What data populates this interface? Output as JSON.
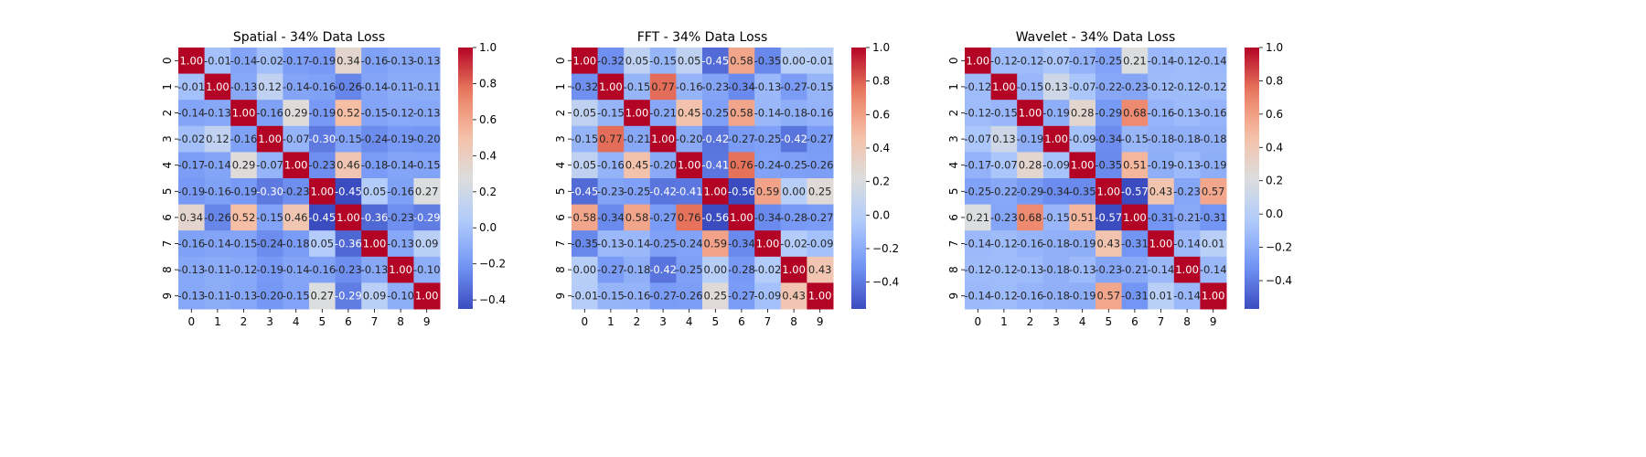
{
  "colormap": {
    "name": "coolwarm",
    "stops": [
      "#3b4cc0",
      "#7396f5",
      "#b0cbfc",
      "#dcdddd",
      "#f6bfa6",
      "#ea7b60",
      "#b40426"
    ]
  },
  "chart_data": [
    {
      "type": "heatmap",
      "title": "Spatial - 34% Data Loss",
      "x_ticks": [
        "0",
        "1",
        "2",
        "3",
        "4",
        "5",
        "6",
        "7",
        "8",
        "9"
      ],
      "y_ticks": [
        "0",
        "1",
        "2",
        "3",
        "4",
        "5",
        "6",
        "7",
        "8",
        "9"
      ],
      "values": [
        [
          1.0,
          -0.01,
          -0.14,
          -0.02,
          -0.17,
          -0.19,
          0.34,
          -0.16,
          -0.13,
          -0.13
        ],
        [
          -0.01,
          1.0,
          -0.13,
          0.12,
          -0.14,
          -0.16,
          -0.26,
          -0.14,
          -0.11,
          -0.11
        ],
        [
          -0.14,
          -0.13,
          1.0,
          -0.16,
          0.29,
          -0.19,
          0.52,
          -0.15,
          -0.12,
          -0.13
        ],
        [
          -0.02,
          0.12,
          -0.16,
          1.0,
          -0.07,
          -0.3,
          -0.15,
          -0.24,
          -0.19,
          -0.2
        ],
        [
          -0.17,
          -0.14,
          0.29,
          -0.07,
          1.0,
          -0.23,
          0.46,
          -0.18,
          -0.14,
          -0.15
        ],
        [
          -0.19,
          -0.16,
          -0.19,
          -0.3,
          -0.23,
          1.0,
          -0.45,
          0.05,
          -0.16,
          0.27
        ],
        [
          0.34,
          -0.26,
          0.52,
          -0.15,
          0.46,
          -0.45,
          1.0,
          -0.36,
          -0.23,
          -0.29
        ],
        [
          -0.16,
          -0.14,
          -0.15,
          -0.24,
          -0.18,
          0.05,
          -0.36,
          1.0,
          -0.13,
          0.09
        ],
        [
          -0.13,
          -0.11,
          -0.12,
          -0.19,
          -0.14,
          -0.16,
          -0.23,
          -0.13,
          1.0,
          -0.1
        ],
        [
          -0.13,
          -0.11,
          -0.13,
          -0.2,
          -0.15,
          0.27,
          -0.29,
          0.09,
          -0.1,
          1.0
        ]
      ],
      "colorbar": {
        "vmin": -0.45,
        "vmax": 1.0,
        "ticks": [
          -0.4,
          -0.2,
          0.0,
          0.2,
          0.4,
          0.6,
          0.8,
          1.0
        ],
        "tick_labels": [
          "−0.4",
          "−0.2",
          "0.0",
          "0.2",
          "0.4",
          "0.6",
          "0.8",
          "1.0"
        ]
      }
    },
    {
      "type": "heatmap",
      "title": "FFT - 34% Data Loss",
      "x_ticks": [
        "0",
        "1",
        "2",
        "3",
        "4",
        "5",
        "6",
        "7",
        "8",
        "9"
      ],
      "y_ticks": [
        "0",
        "1",
        "2",
        "3",
        "4",
        "5",
        "6",
        "7",
        "8",
        "9"
      ],
      "values": [
        [
          1.0,
          -0.32,
          0.05,
          -0.15,
          0.05,
          -0.45,
          0.58,
          -0.35,
          -0.0,
          -0.01
        ],
        [
          -0.32,
          1.0,
          -0.15,
          0.77,
          -0.16,
          -0.23,
          -0.34,
          -0.13,
          -0.27,
          -0.15
        ],
        [
          0.05,
          -0.15,
          1.0,
          -0.21,
          0.45,
          -0.25,
          0.58,
          -0.14,
          -0.18,
          -0.16
        ],
        [
          -0.15,
          0.77,
          -0.21,
          1.0,
          -0.2,
          -0.42,
          -0.27,
          -0.25,
          -0.42,
          -0.27
        ],
        [
          0.05,
          -0.16,
          0.45,
          -0.2,
          1.0,
          -0.41,
          0.76,
          -0.24,
          -0.25,
          -0.26
        ],
        [
          -0.45,
          -0.23,
          -0.25,
          -0.42,
          -0.41,
          1.0,
          -0.56,
          0.59,
          -0.0,
          0.25
        ],
        [
          0.58,
          -0.34,
          0.58,
          -0.27,
          0.76,
          -0.56,
          1.0,
          -0.34,
          -0.28,
          -0.27
        ],
        [
          -0.35,
          -0.13,
          -0.14,
          -0.25,
          -0.24,
          0.59,
          -0.34,
          1.0,
          -0.02,
          -0.09
        ],
        [
          -0.0,
          -0.27,
          -0.18,
          -0.42,
          -0.25,
          -0.0,
          -0.28,
          -0.02,
          1.0,
          0.43
        ],
        [
          -0.01,
          -0.15,
          -0.16,
          -0.27,
          -0.26,
          0.25,
          -0.27,
          -0.09,
          0.43,
          1.0
        ]
      ],
      "colorbar": {
        "vmin": -0.56,
        "vmax": 1.0,
        "ticks": [
          -0.4,
          -0.2,
          0.0,
          0.2,
          0.4,
          0.6,
          0.8,
          1.0
        ],
        "tick_labels": [
          "−0.4",
          "−0.2",
          "0.0",
          "0.2",
          "0.4",
          "0.6",
          "0.8",
          "1.0"
        ]
      }
    },
    {
      "type": "heatmap",
      "title": "Wavelet - 34% Data Loss",
      "x_ticks": [
        "0",
        "1",
        "2",
        "3",
        "4",
        "5",
        "6",
        "7",
        "8",
        "9"
      ],
      "y_ticks": [
        "0",
        "1",
        "2",
        "3",
        "4",
        "5",
        "6",
        "7",
        "8",
        "9"
      ],
      "values": [
        [
          1.0,
          -0.12,
          -0.12,
          -0.07,
          -0.17,
          -0.25,
          0.21,
          -0.14,
          -0.12,
          -0.14
        ],
        [
          -0.12,
          1.0,
          -0.15,
          0.13,
          -0.07,
          -0.22,
          -0.23,
          -0.12,
          -0.12,
          -0.12
        ],
        [
          -0.12,
          -0.15,
          1.0,
          -0.19,
          0.28,
          -0.29,
          0.68,
          -0.16,
          -0.13,
          -0.16
        ],
        [
          -0.07,
          0.13,
          -0.19,
          1.0,
          -0.09,
          -0.34,
          -0.15,
          -0.18,
          -0.18,
          -0.18
        ],
        [
          -0.17,
          -0.07,
          0.28,
          -0.09,
          1.0,
          -0.35,
          0.51,
          -0.19,
          -0.13,
          -0.19
        ],
        [
          -0.25,
          -0.22,
          -0.29,
          -0.34,
          -0.35,
          1.0,
          -0.57,
          0.43,
          -0.23,
          0.57
        ],
        [
          0.21,
          -0.23,
          0.68,
          -0.15,
          0.51,
          -0.57,
          1.0,
          -0.31,
          -0.21,
          -0.31
        ],
        [
          -0.14,
          -0.12,
          -0.16,
          -0.18,
          -0.19,
          0.43,
          -0.31,
          1.0,
          -0.14,
          0.01
        ],
        [
          -0.12,
          -0.12,
          -0.13,
          -0.18,
          -0.13,
          -0.23,
          -0.21,
          -0.14,
          1.0,
          -0.14
        ],
        [
          -0.14,
          -0.12,
          -0.16,
          -0.18,
          -0.19,
          0.57,
          -0.31,
          0.01,
          -0.14,
          1.0
        ]
      ],
      "colorbar": {
        "vmin": -0.57,
        "vmax": 1.0,
        "ticks": [
          -0.4,
          -0.2,
          0.0,
          0.2,
          0.4,
          0.6,
          0.8,
          1.0
        ],
        "tick_labels": [
          "−0.4",
          "−0.2",
          "0.0",
          "0.2",
          "0.4",
          "0.6",
          "0.8",
          "1.0"
        ]
      }
    }
  ]
}
